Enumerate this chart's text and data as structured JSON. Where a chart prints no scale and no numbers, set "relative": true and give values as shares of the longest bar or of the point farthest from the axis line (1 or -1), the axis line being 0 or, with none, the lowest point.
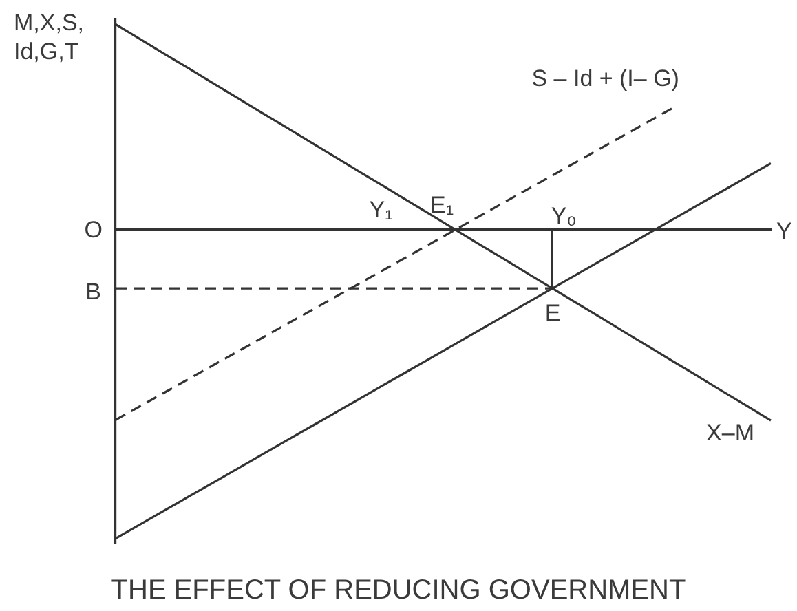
{
  "chart_data": {
    "type": "line",
    "title": "THE EFFECT OF REDUCING GOVERNMENT",
    "ylabel": "M,X,S, Id,G,T",
    "xlabel": "Y",
    "relative": true,
    "marker": "none",
    "categories": [
      null,
      null,
      null,
      null,
      null,
      null,
      null,
      null,
      null,
      null,
      null,
      null,
      null,
      null,
      null,
      null,
      null,
      null,
      null,
      null,
      null,
      null,
      null,
      null,
      null,
      null,
      null,
      null
    ],
    "series": [
      {
        "name": "X–M",
        "color": "#333333",
        "line_style": "solid",
        "values": [
          0.665,
          0.618,
          0.57,
          0.523,
          0.475,
          0.428,
          0.38,
          0.333,
          0.285,
          0.238,
          0.19,
          0.143,
          0.095,
          0.048,
          0,
          -0.048,
          -0.095,
          -0.143,
          -0.19,
          -0.238,
          -0.285,
          -0.333,
          -0.38,
          -0.428,
          -0.475,
          -0.523,
          -0.57,
          -0.618
        ]
      },
      {
        "name": "S – Id + (I– G)",
        "color": "#333333",
        "line_style": "dashed",
        "values": [
          -0.616,
          -0.572,
          -0.528,
          -0.484,
          -0.44,
          -0.396,
          -0.352,
          -0.308,
          -0.264,
          -0.22,
          -0.176,
          -0.132,
          -0.088,
          -0.044,
          0,
          0.044,
          0.088,
          0.132,
          0.176,
          0.22,
          0.264,
          0.308,
          0.352,
          0.396,
          null,
          null,
          null,
          null
        ]
      },
      {
        "color": "#333333",
        "line_style": "solid",
        "values": [
          -1,
          -0.955,
          -0.91,
          -0.865,
          -0.82,
          -0.775,
          -0.73,
          -0.685,
          -0.64,
          -0.595,
          -0.55,
          -0.505,
          -0.46,
          -0.415,
          -0.37,
          -0.325,
          -0.28,
          -0.235,
          -0.19,
          -0.145,
          -0.1,
          -0.055,
          -0.01,
          0.035,
          0.08,
          0.125,
          0.17,
          0.215
        ]
      },
      {
        "color": "#333333",
        "line_style": "dashed",
        "values": [
          -0.19,
          -0.19,
          -0.19,
          -0.19,
          -0.19,
          -0.19,
          -0.19,
          -0.19,
          -0.19,
          -0.19,
          -0.19,
          -0.19,
          -0.19,
          -0.19,
          -0.19,
          -0.19,
          -0.19,
          -0.19,
          -0.19,
          null,
          null,
          null,
          null,
          null,
          null,
          null,
          null,
          null
        ]
      }
    ],
    "annotations": [
      "O",
      "B",
      "Y₁",
      "E₁",
      "Y₀",
      "E"
    ]
  }
}
